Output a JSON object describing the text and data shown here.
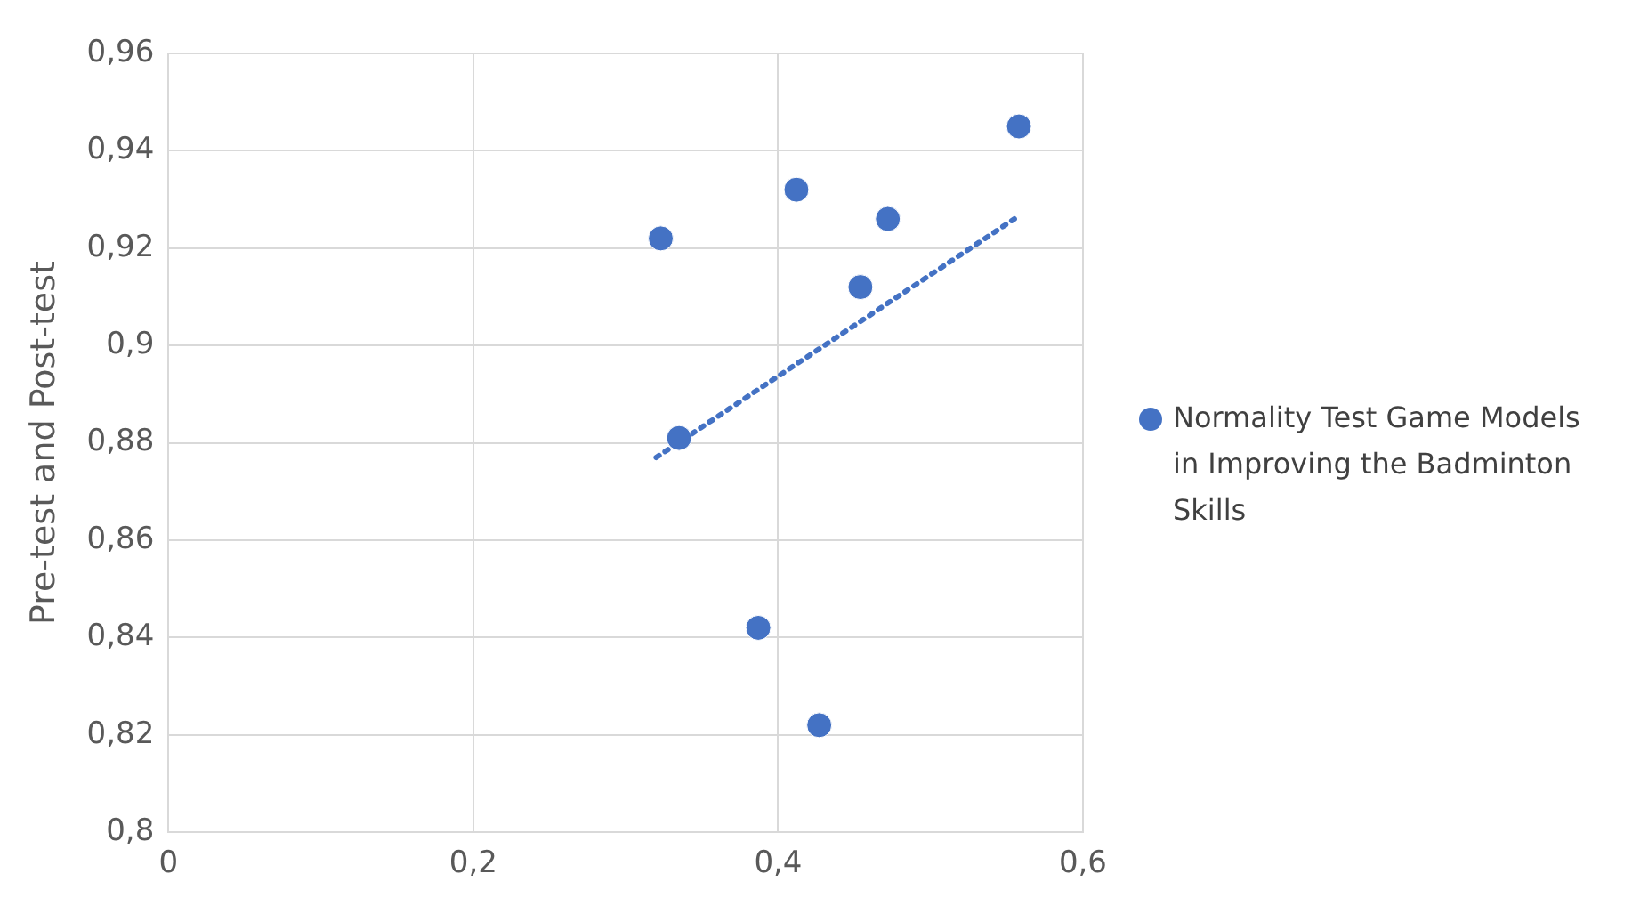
{
  "chart_data": {
    "type": "scatter",
    "ylabel": "Pre-test and Post-test",
    "xlim": [
      0,
      0.6
    ],
    "xticks": [
      0,
      {
        "value": 0.2,
        "label": "0,2"
      },
      {
        "value": 0.4,
        "label": "0,4"
      },
      {
        "value": 0.6,
        "label": "0,6"
      }
    ],
    "ylim": [
      0.8,
      0.96
    ],
    "yticks": [
      {
        "value": 0.8,
        "label": "0,8"
      },
      {
        "value": 0.82,
        "label": "0,82"
      },
      {
        "value": 0.84,
        "label": "0,84"
      },
      {
        "value": 0.86,
        "label": "0,86"
      },
      {
        "value": 0.88,
        "label": "0,88"
      },
      {
        "value": 0.9,
        "label": "0,9"
      },
      {
        "value": 0.92,
        "label": "0,92"
      },
      {
        "value": 0.94,
        "label": "0,94"
      },
      {
        "value": 0.96,
        "label": "0,96"
      }
    ],
    "grid": true,
    "legend": "right",
    "marker": "circle",
    "series": [
      {
        "name": "Normality Test Game Models in Improving the Badminton Skills",
        "color": "#4472c4",
        "x": [
          0.323,
          0.412,
          0.472,
          0.558,
          0.454,
          0.335,
          0.387,
          0.427
        ],
        "values": [
          0.922,
          0.932,
          0.926,
          0.945,
          0.912,
          0.881,
          0.842,
          0.822
        ]
      },
      {
        "type": "line",
        "color": "#4472c4",
        "line_style": "dotted",
        "marker": "none",
        "x": [
          0.32,
          0.555
        ],
        "values": [
          0.877,
          0.926
        ]
      }
    ]
  }
}
